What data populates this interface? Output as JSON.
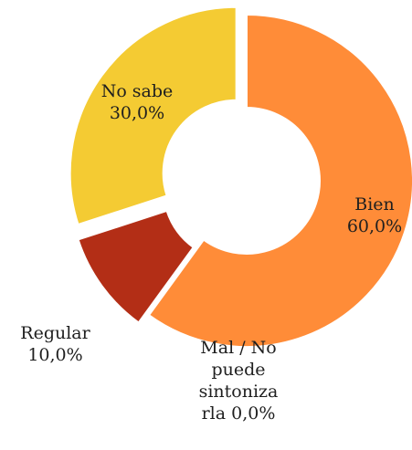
{
  "chart_data": {
    "type": "pie",
    "hole": "donut",
    "slices": [
      {
        "name": "Bien",
        "value": 60.0,
        "label": "60,0%",
        "color": "#FF8C38",
        "exploded": false
      },
      {
        "name": "Mal / No puede sintonizarla",
        "value": 0.0,
        "label": "0,0%",
        "color": "#D9531E",
        "exploded": true
      },
      {
        "name": "Regular",
        "value": 10.0,
        "label": "10,0%",
        "color": "#B32E16",
        "exploded": true
      },
      {
        "name": "No sabe",
        "value": 30.0,
        "label": "30,0%",
        "color": "#F4CB33",
        "exploded": true
      }
    ],
    "labels": {
      "bien": [
        "Bien",
        "60,0%"
      ],
      "mal": [
        "Mal / No",
        "puede",
        "sintoniza",
        "rla 0,0%"
      ],
      "regular": [
        "Regular",
        "10,0%"
      ],
      "nosabe": [
        "No sabe",
        "30,0%"
      ]
    }
  }
}
